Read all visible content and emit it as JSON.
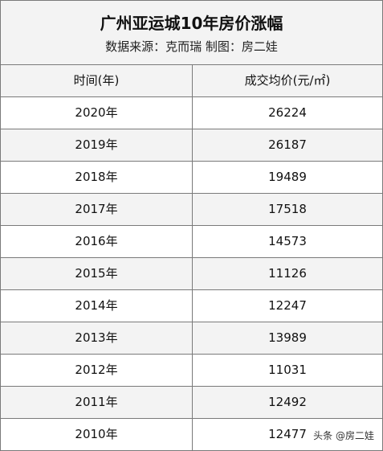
{
  "title": "广州亚运城10年房价涨幅",
  "subtitle": "数据来源：克而瑞 制图：房二娃",
  "table": {
    "headers": [
      "时间(年)",
      "成交均价(元/㎡)"
    ],
    "rows": [
      {
        "year": "2020年",
        "price": "26224"
      },
      {
        "year": "2019年",
        "price": "26187"
      },
      {
        "year": "2018年",
        "price": "19489"
      },
      {
        "year": "2017年",
        "price": "17518"
      },
      {
        "year": "2016年",
        "price": "14573"
      },
      {
        "year": "2015年",
        "price": "11126"
      },
      {
        "year": "2014年",
        "price": "12247"
      },
      {
        "year": "2013年",
        "price": "13989"
      },
      {
        "year": "2012年",
        "price": "11031"
      },
      {
        "year": "2011年",
        "price": "12492"
      },
      {
        "year": "2010年",
        "price": "12477"
      }
    ]
  },
  "watermark": {
    "text": "头条 @房二娃",
    "icon": "toutiao-icon"
  }
}
